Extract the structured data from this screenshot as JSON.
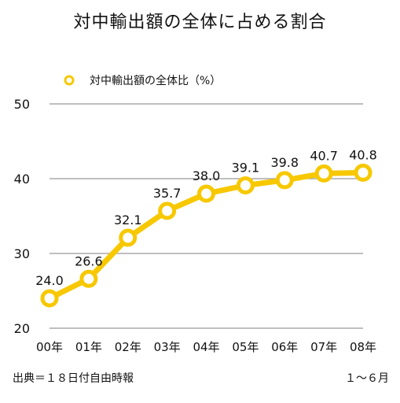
{
  "page": {
    "title": "対中輸出額の全体に占める割合",
    "source": "出典＝１８日付自由時報",
    "period": "１～６月"
  },
  "colors": {
    "series": "#f7c800",
    "grid": "#999999",
    "marker_fill": "#ffffff"
  },
  "chart_data": {
    "type": "line",
    "title": "対中輸出額の全体に占める割合",
    "categories": [
      "00年",
      "01年",
      "02年",
      "03年",
      "04年",
      "05年",
      "06年",
      "07年",
      "08年"
    ],
    "series": [
      {
        "name": "対中輸出額の全体比（%）",
        "values": [
          24.0,
          26.6,
          32.1,
          35.7,
          38.0,
          39.1,
          39.8,
          40.7,
          40.8
        ]
      }
    ],
    "data_labels": [
      "24.0",
      "26.6",
      "32.1",
      "35.7",
      "38.0",
      "39.1",
      "39.8",
      "40.7",
      "40.8"
    ],
    "y_ticks": [
      "20",
      "30",
      "40",
      "50"
    ],
    "ylim": [
      20,
      50
    ],
    "grid": true,
    "legend": "top-left",
    "xlabel": "",
    "ylabel": ""
  }
}
